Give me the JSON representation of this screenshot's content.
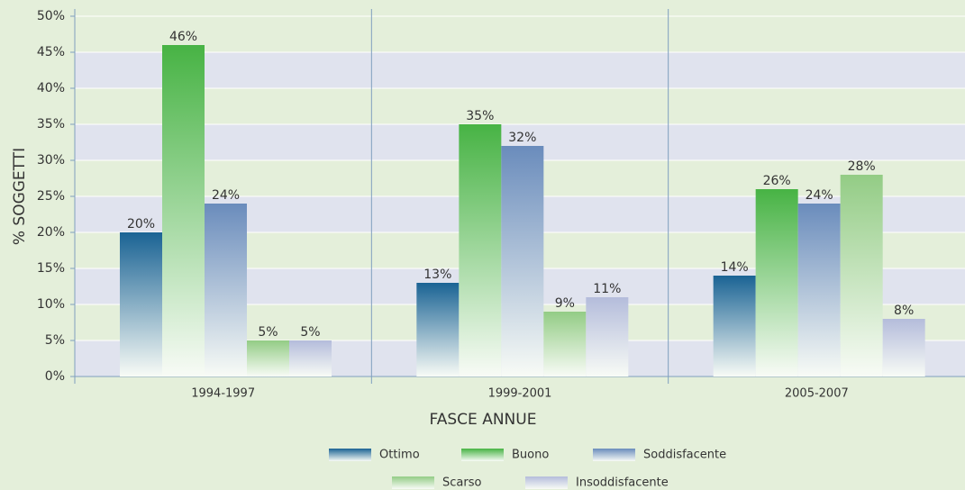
{
  "chart_data": {
    "type": "bar",
    "x_label": "FASCE ANNUE",
    "y_label": "% SOGGETTI",
    "categories": [
      "1994-1997",
      "1999-2001",
      "2005-2007"
    ],
    "series": [
      {
        "name": "Ottimo",
        "color": "#1a6394",
        "values": [
          20,
          13,
          14
        ],
        "value_labels": [
          "20%",
          "13%",
          "14%"
        ]
      },
      {
        "name": "Buono",
        "color": "#47b344",
        "values": [
          46,
          35,
          26
        ],
        "value_labels": [
          "46%",
          "35%",
          "26%"
        ]
      },
      {
        "name": "Soddisfacente",
        "color": "#6a8cbc",
        "values": [
          24,
          32,
          24
        ],
        "value_labels": [
          "24%",
          "32%",
          "24%"
        ]
      },
      {
        "name": "Scarso",
        "color": "#93cc85",
        "values": [
          5,
          9,
          28
        ],
        "value_labels": [
          "5%",
          "9%",
          "28%"
        ]
      },
      {
        "name": "Insoddisfacente",
        "color": "#b4bcdb",
        "values": [
          5,
          11,
          8
        ],
        "value_labels": [
          "5%",
          "11%",
          "8%"
        ]
      }
    ],
    "ylim": [
      0,
      50
    ],
    "yticks": [
      {
        "value": 0,
        "label": "0%"
      },
      {
        "value": 5,
        "label": "5%"
      },
      {
        "value": 10,
        "label": "10%"
      },
      {
        "value": 15,
        "label": "15%"
      },
      {
        "value": 20,
        "label": "20%"
      },
      {
        "value": 25,
        "label": "25%"
      },
      {
        "value": 30,
        "label": "30%"
      },
      {
        "value": 35,
        "label": "35%"
      },
      {
        "value": 40,
        "label": "40%"
      },
      {
        "value": 45,
        "label": "45%"
      },
      {
        "value": 50,
        "label": "50%"
      }
    ],
    "grid": true
  }
}
